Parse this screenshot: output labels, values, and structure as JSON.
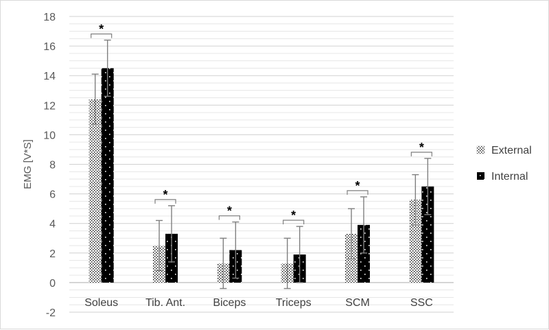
{
  "chart_data": {
    "type": "bar",
    "title": "",
    "xlabel": "",
    "ylabel": "EMG [V*S]",
    "ylim": [
      -2,
      18
    ],
    "yticks": [
      -2,
      0,
      2,
      4,
      6,
      8,
      10,
      12,
      14,
      16,
      18
    ],
    "minor_grid_step": 0.5,
    "grid": true,
    "legend_position": "right",
    "categories": [
      "Soleus",
      "Tib. Ant.",
      "Biceps",
      "Triceps",
      "SCM",
      "SSC"
    ],
    "series": [
      {
        "name": "External",
        "pattern": "dots",
        "color": "#000000",
        "values": [
          12.4,
          2.5,
          1.3,
          1.3,
          3.3,
          5.6
        ],
        "errors": [
          1.7,
          1.7,
          1.7,
          1.7,
          1.7,
          1.7
        ]
      },
      {
        "name": "Internal",
        "pattern": "solid-with-white-dots",
        "color": "#000000",
        "values": [
          14.5,
          3.3,
          2.2,
          1.9,
          3.9,
          6.5
        ],
        "errors": [
          1.9,
          1.9,
          1.9,
          1.9,
          1.9,
          1.9
        ]
      }
    ],
    "significance": [
      {
        "category": "Soleus",
        "label": "*"
      },
      {
        "category": "Tib. Ant.",
        "label": "*"
      },
      {
        "category": "Biceps",
        "label": "*"
      },
      {
        "category": "Triceps",
        "label": "*"
      },
      {
        "category": "SCM",
        "label": "*"
      },
      {
        "category": "SSC",
        "label": "*"
      }
    ]
  }
}
